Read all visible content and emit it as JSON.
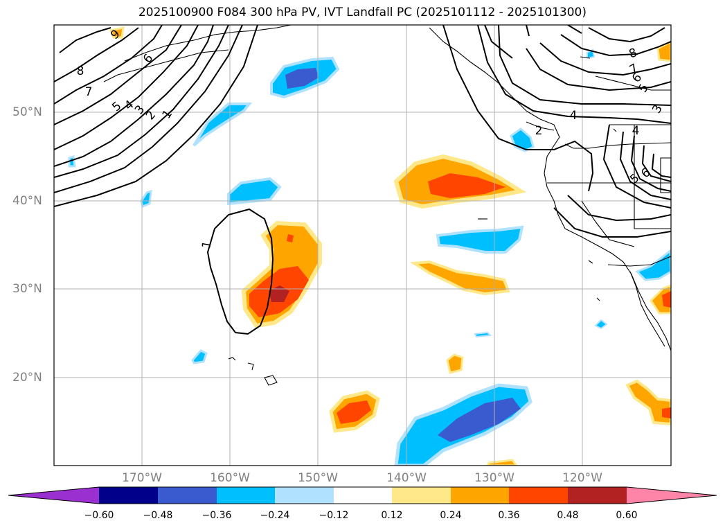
{
  "title": "2025100900 F084 300 hPa PV, IVT Landfall PC (2025101112 - 2025101300)",
  "lat_labels": [
    "50°N",
    "40°N",
    "30°N",
    "20°N"
  ],
  "lon_labels": [
    "170°W",
    "160°W",
    "150°W",
    "140°W",
    "130°W",
    "120°W"
  ],
  "contour_labels": [
    "9",
    "8",
    "7",
    "6",
    "5",
    "4",
    "3",
    "2",
    "1",
    "1",
    "8",
    "7",
    "6",
    "5",
    "4",
    "3",
    "2",
    "4",
    "5",
    "6"
  ],
  "colorbar": {
    "ticks": [
      "−0.60",
      "−0.48",
      "−0.36",
      "−0.24",
      "−0.12",
      "0.12",
      "0.24",
      "0.36",
      "0.48",
      "0.60"
    ],
    "colors": [
      "#9b30d0",
      "#00008b",
      "#3a5bcf",
      "#00bfff",
      "#b0e2ff",
      "#ffffff",
      "#ffe88a",
      "#ffa500",
      "#ff4500",
      "#b22222",
      "#ff85a8"
    ],
    "min_arrow_color": "#9b30d0",
    "max_arrow_color": "#ff85a8"
  }
}
